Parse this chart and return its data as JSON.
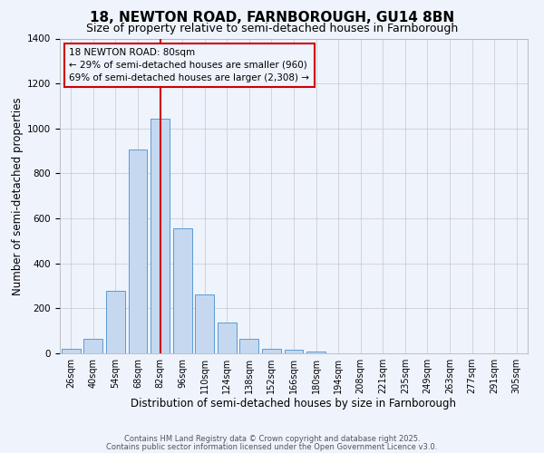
{
  "title": "18, NEWTON ROAD, FARNBOROUGH, GU14 8BN",
  "subtitle": "Size of property relative to semi-detached houses in Farnborough",
  "xlabel": "Distribution of semi-detached houses by size in Farnborough",
  "ylabel": "Number of semi-detached properties",
  "categories": [
    "26sqm",
    "40sqm",
    "54sqm",
    "68sqm",
    "82sqm",
    "96sqm",
    "110sqm",
    "124sqm",
    "138sqm",
    "152sqm",
    "166sqm",
    "180sqm",
    "194sqm",
    "208sqm",
    "221sqm",
    "235sqm",
    "249sqm",
    "263sqm",
    "277sqm",
    "291sqm",
    "305sqm"
  ],
  "bar_heights": [
    20,
    65,
    280,
    905,
    1045,
    555,
    260,
    135,
    65,
    20,
    15,
    10,
    2,
    0,
    0,
    0,
    0,
    0,
    0,
    0,
    2
  ],
  "bar_color": "#c5d8f0",
  "bar_edge_color": "#5b9bd5",
  "vline_bin": 4,
  "vline_color": "#cc0000",
  "ylim": [
    0,
    1400
  ],
  "yticks": [
    0,
    200,
    400,
    600,
    800,
    1000,
    1200,
    1400
  ],
  "bg_color": "#eef3fc",
  "grid_color": "#c8c8c8",
  "annotation_title": "18 NEWTON ROAD: 80sqm",
  "annotation_line1": "← 29% of semi-detached houses are smaller (960)",
  "annotation_line2": "69% of semi-detached houses are larger (2,308) →",
  "footer_line1": "Contains HM Land Registry data © Crown copyright and database right 2025.",
  "footer_line2": "Contains public sector information licensed under the Open Government Licence v3.0.",
  "title_fontsize": 11,
  "subtitle_fontsize": 9,
  "axis_label_fontsize": 8.5,
  "tick_fontsize": 7,
  "annotation_fontsize": 7.5,
  "footer_fontsize": 6
}
